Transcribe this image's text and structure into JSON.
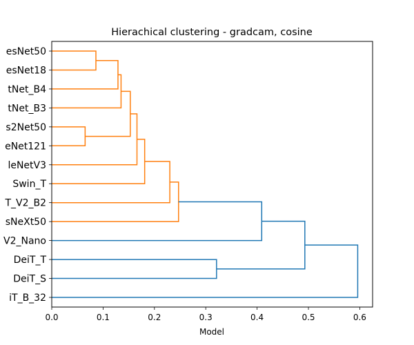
{
  "chart_data": {
    "type": "dendrogram",
    "title": "Hierachical clustering - gradcam, cosine",
    "xlabel": "Model",
    "ylabel": "",
    "xlim": [
      0.0,
      0.625
    ],
    "xticks": [
      "0.0",
      "0.1",
      "0.2",
      "0.3",
      "0.4",
      "0.5",
      "0.6"
    ],
    "grid": false,
    "leaves": [
      "esNet50",
      "esNet18",
      "tNet_B4",
      "tNet_B3",
      "s2Net50",
      "eNet121",
      "leNetV3",
      "Swin_T",
      "T_V2_B2",
      "sNeXt50",
      "V2_Nano",
      "DeiT_T",
      "DeiT_S",
      "iT_B_32"
    ],
    "colors": {
      "cluster": "#ff7f0e",
      "above": "#1f77b4"
    },
    "merges": [
      {
        "a": 0,
        "b": 1,
        "height": 0.086,
        "group": "cluster"
      },
      {
        "a": 14,
        "b": 2,
        "height": 0.129,
        "group": "cluster"
      },
      {
        "a": 15,
        "b": 3,
        "height": 0.135,
        "group": "cluster"
      },
      {
        "a": 4,
        "b": 5,
        "height": 0.065,
        "group": "cluster"
      },
      {
        "a": 16,
        "b": 17,
        "height": 0.153,
        "group": "cluster"
      },
      {
        "a": 18,
        "b": 6,
        "height": 0.166,
        "group": "cluster"
      },
      {
        "a": 19,
        "b": 7,
        "height": 0.181,
        "group": "cluster"
      },
      {
        "a": 20,
        "b": 8,
        "height": 0.23,
        "group": "cluster"
      },
      {
        "a": 21,
        "b": 9,
        "height": 0.247,
        "group": "cluster"
      },
      {
        "a": 22,
        "b": 10,
        "height": 0.409,
        "group": "above"
      },
      {
        "a": 11,
        "b": 12,
        "height": 0.321,
        "group": "above"
      },
      {
        "a": 23,
        "b": 24,
        "height": 0.493,
        "group": "above"
      },
      {
        "a": 25,
        "b": 13,
        "height": 0.596,
        "group": "above"
      }
    ]
  }
}
